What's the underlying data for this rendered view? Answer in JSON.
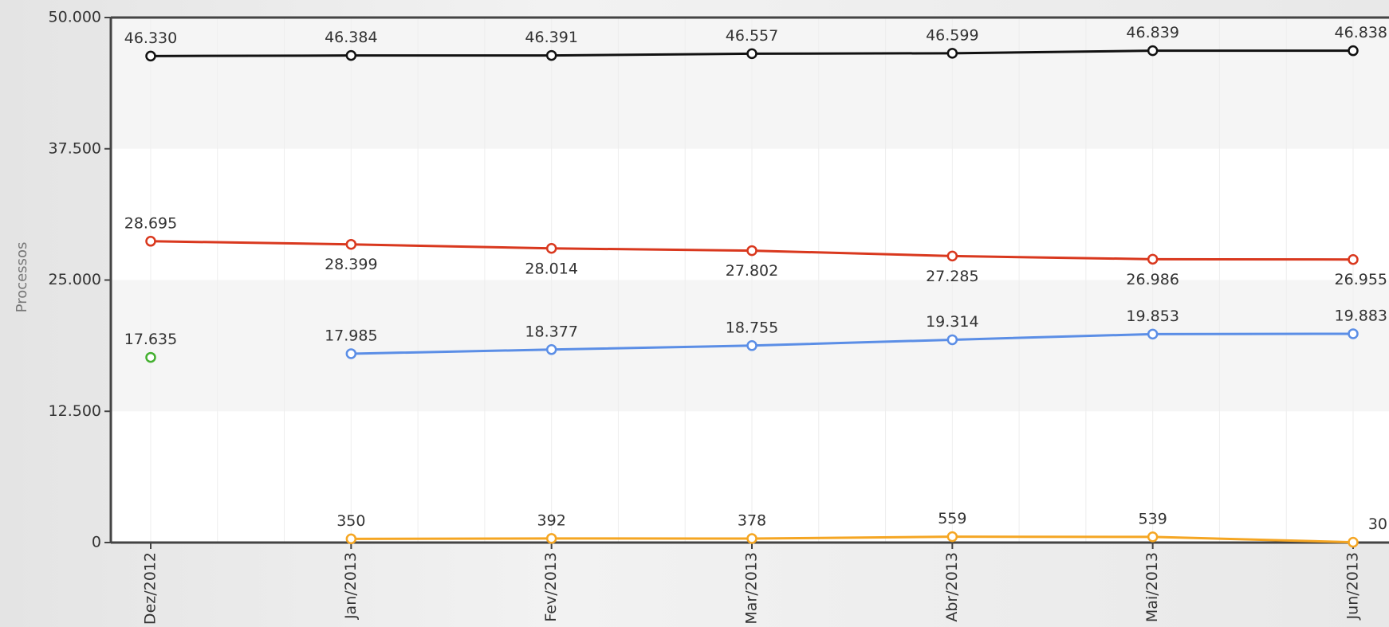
{
  "chart_data": {
    "type": "line",
    "y_label": "Processos",
    "categories": [
      "Dez/2012",
      "Jan/2013",
      "Fev/2013",
      "Mar/2013",
      "Abr/2013",
      "Mai/2013",
      "Jun/2013"
    ],
    "ylim": [
      0,
      50000
    ],
    "yticks": [
      {
        "value": 0,
        "label": "0"
      },
      {
        "value": 12500,
        "label": "12.500"
      },
      {
        "value": 25000,
        "label": "25.000"
      },
      {
        "value": 37500,
        "label": "37.500"
      },
      {
        "value": 50000,
        "label": "50.000"
      }
    ],
    "series": [
      {
        "color": "#111111",
        "values": [
          46330,
          46384,
          46391,
          46557,
          46599,
          46839,
          46838
        ],
        "value_labels": [
          "46.330",
          "46.384",
          "46.391",
          "46.557",
          "46.599",
          "46.839",
          "46.838"
        ]
      },
      {
        "color": "#d9381e",
        "values": [
          28695,
          28399,
          28014,
          27802,
          27285,
          26986,
          26955
        ],
        "value_labels": [
          "28.695",
          "28.399",
          "28.014",
          "27.802",
          "27.285",
          "26.986",
          "26.955"
        ]
      },
      {
        "color": "#5b8ee6",
        "values": [
          null,
          17985,
          18377,
          18755,
          19314,
          19853,
          19883
        ],
        "value_labels": [
          null,
          "17.985",
          "18.377",
          "18.755",
          "19.314",
          "19.853",
          "19.883"
        ]
      },
      {
        "color": "#44b030",
        "values": [
          17635,
          null,
          null,
          null,
          null,
          null,
          null
        ],
        "value_labels": [
          "17.635",
          null,
          null,
          null,
          null,
          null,
          null
        ]
      },
      {
        "color": "#f5a623",
        "values": [
          null,
          350,
          392,
          378,
          559,
          539,
          30
        ]
      }
    ]
  }
}
